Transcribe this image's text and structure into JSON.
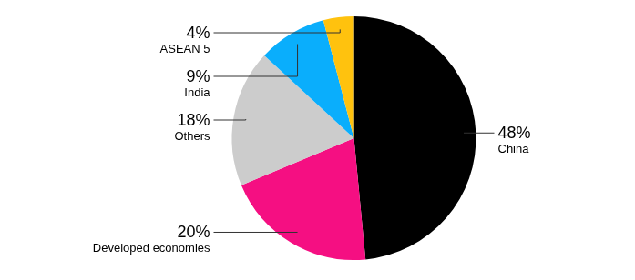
{
  "chart_data": {
    "type": "pie",
    "categories": [
      "China",
      "Developed economies",
      "Others",
      "India",
      "ASEAN 5"
    ],
    "values": [
      48,
      20,
      18,
      9,
      4
    ],
    "value_labels": [
      "48%",
      "20%",
      "18%",
      "9%",
      "4%"
    ],
    "colors": [
      "#000000",
      "#f50f82",
      "#cccccc",
      "#0aaefc",
      "#ffc20e"
    ],
    "data_labels": true
  }
}
